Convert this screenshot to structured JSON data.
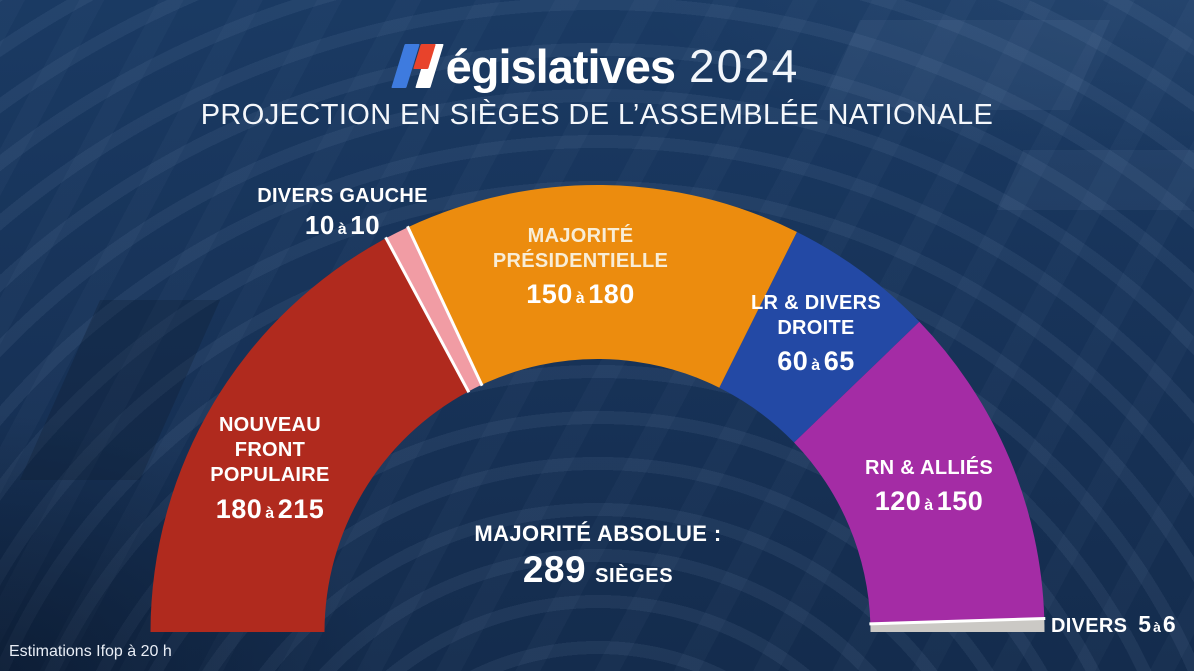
{
  "brand": {
    "word_rest": "égislatives",
    "year": "2024"
  },
  "header": {
    "subtitle": "PROJECTION EN SIÈGES DE L’ASSEMBLÉE NATIONALE"
  },
  "labels": {
    "range_connector": "à"
  },
  "center": {
    "majority_line": "MAJORITÉ ABSOLUE :",
    "majority_seats": "289",
    "majority_unit": "SIÈGES"
  },
  "footer": {
    "source_note": "Estimations Ifop à 20 h"
  },
  "chart_data": {
    "type": "hemicycle-donut",
    "title": "Législatives 2024 — Projection en sièges de l’Assemblée nationale",
    "majority_threshold": 289,
    "orientation": "left-to-right-semicircle",
    "background_color": "#183459",
    "separator_color": "#FFFFFF",
    "white_separator_boundaries": [
      1,
      2,
      5
    ],
    "segments": [
      {
        "party": "NOUVEAU FRONT POPULAIRE",
        "name_lines": [
          "NOUVEAU",
          "FRONT",
          "POPULAIRE"
        ],
        "seats_min": 180,
        "seats_max": 215,
        "color": "#B02A1E"
      },
      {
        "party": "DIVERS GAUCHE",
        "name_lines": [
          "DIVERS GAUCHE"
        ],
        "seats_min": 10,
        "seats_max": 10,
        "color": "#F19CA4"
      },
      {
        "party": "MAJORITÉ PRÉSIDENTIELLE",
        "name_lines": [
          "MAJORITÉ",
          "PRÉSIDENTIELLE"
        ],
        "seats_min": 150,
        "seats_max": 180,
        "color": "#EC8C0E"
      },
      {
        "party": "LR & DIVERS DROITE",
        "name_lines": [
          "LR & DIVERS",
          "DROITE"
        ],
        "seats_min": 60,
        "seats_max": 65,
        "color": "#2349A5"
      },
      {
        "party": "RN & ALLIÉS",
        "name_lines": [
          "RN & ALLIÉS"
        ],
        "seats_min": 120,
        "seats_max": 150,
        "color": "#A42CA5"
      },
      {
        "party": "DIVERS",
        "name_lines": [
          "DIVERS"
        ],
        "seats_min": 5,
        "seats_max": 6,
        "color": "#CBC9C5"
      }
    ]
  }
}
